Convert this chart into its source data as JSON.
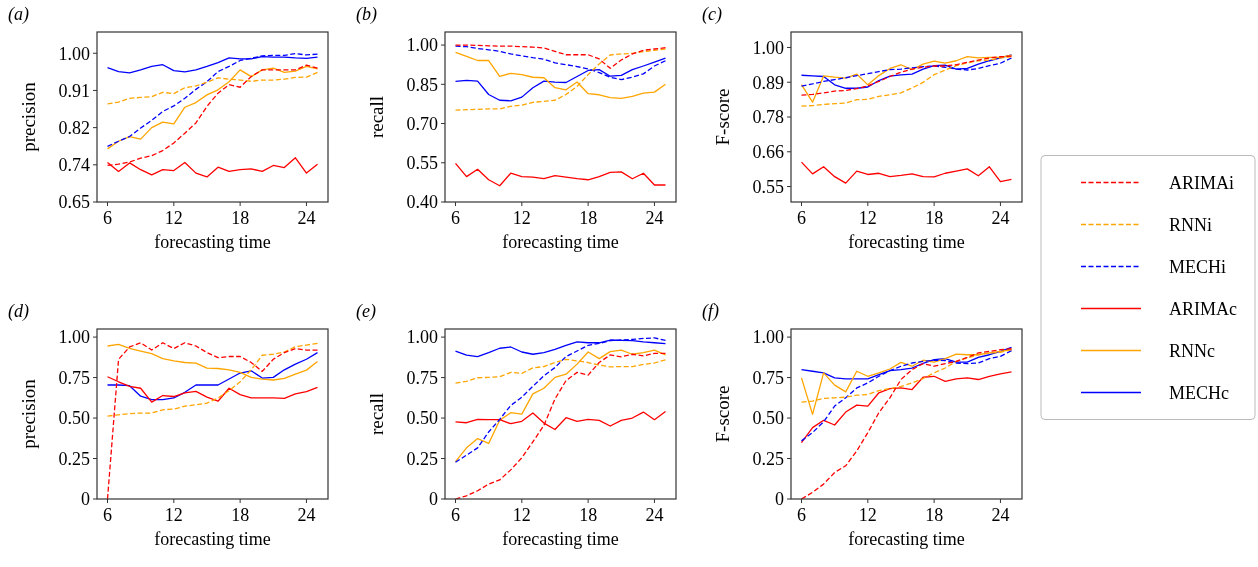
{
  "chart_data": [
    {
      "type": "line",
      "title": "(a)",
      "xlabel": "forecasting time",
      "ylabel": "precision",
      "legend": "right",
      "x": [
        6,
        7,
        8,
        9,
        10,
        11,
        12,
        13,
        14,
        15,
        16,
        17,
        18,
        19,
        20,
        21,
        22,
        23,
        24,
        25
      ],
      "xlim": [
        5.05,
        25.95
      ],
      "xticks": [
        6,
        12,
        18,
        24
      ],
      "ylim": [
        0.65,
        1.05
      ],
      "yticks": [
        0.65,
        {
          "value": 0.7375,
          "label": "0.74"
        },
        {
          "value": 0.825,
          "label": "0.82"
        },
        {
          "value": 0.9125,
          "label": "0.91"
        },
        {
          "value": 1.0,
          "label": "1.00"
        }
      ],
      "series": [
        {
          "name": "ARIMAi",
          "color": "#ff0000",
          "line_style": "dashed",
          "values": [
            0.736,
            0.739,
            0.744,
            0.753,
            0.759,
            0.771,
            0.789,
            0.812,
            0.836,
            0.875,
            0.906,
            0.926,
            0.92,
            0.945,
            0.961,
            0.961,
            0.961,
            0.961,
            0.972,
            0.965
          ]
        },
        {
          "name": "RNNi",
          "color": "#ffa500",
          "line_style": "dashed",
          "values": [
            0.881,
            0.885,
            0.894,
            0.896,
            0.898,
            0.908,
            0.905,
            0.919,
            0.923,
            0.932,
            0.942,
            0.939,
            0.937,
            0.934,
            0.937,
            0.937,
            0.939,
            0.943,
            0.944,
            0.955
          ]
        },
        {
          "name": "MECHi",
          "color": "#0000ff",
          "line_style": "dashed",
          "values": [
            0.781,
            0.793,
            0.804,
            0.824,
            0.842,
            0.863,
            0.876,
            0.894,
            0.915,
            0.933,
            0.957,
            0.969,
            0.983,
            0.988,
            0.994,
            0.995,
            0.995,
            0.999,
            0.996,
            0.998
          ]
        },
        {
          "name": "ARIMAc",
          "color": "#ff0000",
          "line_style": "solid",
          "values": [
            0.743,
            0.722,
            0.742,
            0.726,
            0.714,
            0.726,
            0.724,
            0.743,
            0.718,
            0.709,
            0.732,
            0.722,
            0.726,
            0.728,
            0.722,
            0.736,
            0.731,
            0.754,
            0.718,
            0.739
          ]
        },
        {
          "name": "RNNc",
          "color": "#ffa500",
          "line_style": "solid",
          "values": [
            0.775,
            0.793,
            0.804,
            0.798,
            0.825,
            0.838,
            0.834,
            0.873,
            0.884,
            0.902,
            0.914,
            0.933,
            0.961,
            0.945,
            0.961,
            0.965,
            0.955,
            0.958,
            0.969,
            0.963
          ]
        },
        {
          "name": "MECHc",
          "color": "#0000ff",
          "line_style": "solid",
          "values": [
            0.966,
            0.957,
            0.954,
            0.961,
            0.969,
            0.973,
            0.959,
            0.956,
            0.961,
            0.969,
            0.978,
            0.989,
            0.987,
            0.987,
            0.992,
            0.991,
            0.991,
            0.989,
            0.988,
            0.991
          ]
        }
      ]
    },
    {
      "type": "line",
      "title": "(b)",
      "xlabel": "forecasting time",
      "ylabel": "recall",
      "x": [
        6,
        7,
        8,
        9,
        10,
        11,
        12,
        13,
        14,
        15,
        16,
        17,
        18,
        19,
        20,
        21,
        22,
        23,
        24,
        25
      ],
      "xlim": [
        5.05,
        25.95
      ],
      "xticks": [
        6,
        12,
        18,
        24
      ],
      "ylim": [
        0.4,
        1.05
      ],
      "yticks": [
        {
          "value": 0.4,
          "label": "0.40"
        },
        0.55,
        {
          "value": 0.7,
          "label": "0.70"
        },
        0.85,
        {
          "value": 1.0,
          "label": "1.00"
        }
      ],
      "series": [
        {
          "color": "#ff0000",
          "line_style": "dashed",
          "values": [
            1.0,
            1.0,
            0.999,
            0.997,
            0.996,
            0.996,
            0.994,
            0.992,
            0.989,
            0.976,
            0.963,
            0.963,
            0.963,
            0.947,
            0.911,
            0.943,
            0.966,
            0.98,
            0.985,
            0.99
          ]
        },
        {
          "color": "#ffa500",
          "line_style": "dashed",
          "values": [
            0.751,
            0.753,
            0.754,
            0.756,
            0.756,
            0.766,
            0.77,
            0.781,
            0.785,
            0.789,
            0.811,
            0.842,
            0.887,
            0.928,
            0.962,
            0.966,
            0.968,
            0.975,
            0.98,
            0.985
          ]
        },
        {
          "color": "#0000ff",
          "line_style": "dashed",
          "values": [
            0.996,
            0.994,
            0.987,
            0.982,
            0.976,
            0.966,
            0.959,
            0.952,
            0.946,
            0.932,
            0.925,
            0.918,
            0.909,
            0.895,
            0.877,
            0.868,
            0.877,
            0.89,
            0.92,
            0.94
          ]
        },
        {
          "color": "#ff0000",
          "line_style": "solid",
          "values": [
            0.548,
            0.497,
            0.525,
            0.485,
            0.462,
            0.51,
            0.497,
            0.495,
            0.489,
            0.501,
            0.495,
            0.489,
            0.485,
            0.497,
            0.513,
            0.515,
            0.489,
            0.51,
            0.465,
            0.465
          ]
        },
        {
          "color": "#ffa500",
          "line_style": "solid",
          "values": [
            0.972,
            0.957,
            0.941,
            0.941,
            0.88,
            0.892,
            0.887,
            0.877,
            0.875,
            0.837,
            0.829,
            0.859,
            0.814,
            0.81,
            0.799,
            0.796,
            0.804,
            0.816,
            0.82,
            0.85
          ]
        },
        {
          "color": "#0000ff",
          "line_style": "solid",
          "values": [
            0.861,
            0.865,
            0.862,
            0.811,
            0.789,
            0.787,
            0.801,
            0.837,
            0.862,
            0.858,
            0.857,
            0.88,
            0.903,
            0.906,
            0.881,
            0.884,
            0.906,
            0.92,
            0.935,
            0.95
          ]
        }
      ]
    },
    {
      "type": "line",
      "title": "(c)",
      "xlabel": "forecasting time",
      "ylabel": "F-score",
      "x": [
        6,
        7,
        8,
        9,
        10,
        11,
        12,
        13,
        14,
        15,
        16,
        17,
        18,
        19,
        20,
        21,
        22,
        23,
        24,
        25
      ],
      "xlim": [
        5.05,
        25.95
      ],
      "xticks": [
        6,
        12,
        18,
        24
      ],
      "ylim": [
        0.5,
        1.05
      ],
      "yticks": [
        0.55,
        {
          "value": 0.6625,
          "label": "0.66"
        },
        {
          "value": 0.775,
          "label": "0.78"
        },
        {
          "value": 0.8875,
          "label": "0.89"
        },
        {
          "value": 1.0,
          "label": "1.00"
        }
      ],
      "series": [
        {
          "color": "#ff0000",
          "line_style": "dashed",
          "values": [
            0.846,
            0.848,
            0.853,
            0.859,
            0.861,
            0.867,
            0.876,
            0.89,
            0.906,
            0.92,
            0.93,
            0.936,
            0.94,
            0.94,
            0.944,
            0.952,
            0.959,
            0.966,
            0.97,
            0.972
          ]
        },
        {
          "color": "#ffa500",
          "line_style": "dashed",
          "values": [
            0.81,
            0.812,
            0.816,
            0.818,
            0.82,
            0.831,
            0.832,
            0.842,
            0.847,
            0.853,
            0.869,
            0.887,
            0.912,
            0.927,
            0.941,
            0.95,
            0.957,
            0.959,
            0.966,
            0.97
          ]
        },
        {
          "color": "#0000ff",
          "line_style": "dashed",
          "values": [
            0.875,
            0.882,
            0.89,
            0.896,
            0.902,
            0.909,
            0.915,
            0.922,
            0.928,
            0.93,
            0.934,
            0.938,
            0.94,
            0.936,
            0.93,
            0.927,
            0.932,
            0.941,
            0.949,
            0.966
          ]
        },
        {
          "color": "#ff0000",
          "line_style": "solid",
          "values": [
            0.629,
            0.591,
            0.614,
            0.582,
            0.561,
            0.6,
            0.589,
            0.593,
            0.582,
            0.586,
            0.591,
            0.582,
            0.581,
            0.593,
            0.6,
            0.607,
            0.585,
            0.614,
            0.566,
            0.573
          ]
        },
        {
          "color": "#ffa500",
          "line_style": "solid",
          "values": [
            0.88,
            0.823,
            0.908,
            0.904,
            0.901,
            0.914,
            0.879,
            0.909,
            0.932,
            0.944,
            0.928,
            0.946,
            0.956,
            0.949,
            0.957,
            0.97,
            0.966,
            0.968,
            0.968,
            0.975
          ]
        },
        {
          "color": "#0000ff",
          "line_style": "solid",
          "values": [
            0.91,
            0.908,
            0.906,
            0.879,
            0.868,
            0.868,
            0.872,
            0.893,
            0.907,
            0.911,
            0.914,
            0.93,
            0.941,
            0.943,
            0.93,
            0.932,
            0.946,
            0.957,
            0.966,
            0.976
          ]
        }
      ]
    },
    {
      "type": "line",
      "title": "(d)",
      "xlabel": "forecasting time",
      "ylabel": "precision",
      "x": [
        6,
        7,
        8,
        9,
        10,
        11,
        12,
        13,
        14,
        15,
        16,
        17,
        18,
        19,
        20,
        21,
        22,
        23,
        24,
        25
      ],
      "xlim": [
        5.05,
        25.95
      ],
      "xticks": [
        6,
        12,
        18,
        24
      ],
      "ylim": [
        0,
        1.05
      ],
      "yticks": [
        0,
        0.25,
        {
          "value": 0.5,
          "label": "0.50"
        },
        0.75,
        {
          "value": 1.0,
          "label": "1.00"
        }
      ],
      "series": [
        {
          "color": "#ff0000",
          "line_style": "dashed",
          "values": [
            0.0,
            0.863,
            0.939,
            0.965,
            0.92,
            0.965,
            0.929,
            0.965,
            0.945,
            0.904,
            0.873,
            0.88,
            0.88,
            0.843,
            0.788,
            0.863,
            0.904,
            0.929,
            0.92,
            0.92
          ]
        },
        {
          "color": "#ffa500",
          "line_style": "dashed",
          "values": [
            0.512,
            0.52,
            0.527,
            0.531,
            0.531,
            0.551,
            0.555,
            0.573,
            0.582,
            0.592,
            0.624,
            0.669,
            0.724,
            0.798,
            0.888,
            0.894,
            0.908,
            0.941,
            0.951,
            0.961
          ]
        },
        {
          "color": "#ff0000",
          "line_style": "solid",
          "values": [
            0.755,
            0.724,
            0.696,
            0.684,
            0.598,
            0.639,
            0.633,
            0.655,
            0.665,
            0.629,
            0.604,
            0.684,
            0.645,
            0.624,
            0.624,
            0.624,
            0.622,
            0.649,
            0.663,
            0.69
          ]
        },
        {
          "color": "#ffa500",
          "line_style": "solid",
          "values": [
            0.945,
            0.955,
            0.931,
            0.914,
            0.898,
            0.867,
            0.853,
            0.843,
            0.839,
            0.808,
            0.806,
            0.798,
            0.782,
            0.751,
            0.741,
            0.735,
            0.745,
            0.771,
            0.796,
            0.849
          ]
        },
        {
          "color": "#0000ff",
          "line_style": "solid",
          "values": [
            0.704,
            0.704,
            0.7,
            0.635,
            0.614,
            0.614,
            0.624,
            0.659,
            0.704,
            0.704,
            0.704,
            0.741,
            0.778,
            0.792,
            0.747,
            0.751,
            0.798,
            0.833,
            0.863,
            0.904
          ]
        }
      ]
    },
    {
      "type": "line",
      "title": "(e)",
      "xlabel": "forecasting time",
      "ylabel": "recall",
      "x": [
        6,
        7,
        8,
        9,
        10,
        11,
        12,
        13,
        14,
        15,
        16,
        17,
        18,
        19,
        20,
        21,
        22,
        23,
        24,
        25
      ],
      "xlim": [
        5.05,
        25.95
      ],
      "xticks": [
        6,
        12,
        18,
        24
      ],
      "ylim": [
        0,
        1.05
      ],
      "yticks": [
        0,
        0.25,
        {
          "value": 0.5,
          "label": "0.50"
        },
        0.75,
        {
          "value": 1.0,
          "label": "1.00"
        }
      ],
      "series": [
        {
          "color": "#ff0000",
          "line_style": "dashed",
          "values": [
            0.0,
            0.02,
            0.051,
            0.092,
            0.118,
            0.18,
            0.255,
            0.353,
            0.455,
            0.618,
            0.731,
            0.782,
            0.765,
            0.843,
            0.89,
            0.878,
            0.894,
            0.884,
            0.9,
            0.9
          ]
        },
        {
          "color": "#ffa500",
          "line_style": "dashed",
          "values": [
            0.716,
            0.727,
            0.749,
            0.751,
            0.755,
            0.782,
            0.776,
            0.81,
            0.818,
            0.843,
            0.863,
            0.853,
            0.843,
            0.827,
            0.816,
            0.818,
            0.818,
            0.831,
            0.84,
            0.86
          ]
        },
        {
          "color": "#0000ff",
          "line_style": "dashed",
          "values": [
            0.227,
            0.271,
            0.316,
            0.414,
            0.492,
            0.578,
            0.629,
            0.696,
            0.761,
            0.812,
            0.88,
            0.914,
            0.949,
            0.961,
            0.978,
            0.982,
            0.986,
            0.992,
            0.995,
            0.98
          ]
        },
        {
          "color": "#ff0000",
          "line_style": "solid",
          "values": [
            0.476,
            0.471,
            0.492,
            0.49,
            0.49,
            0.465,
            0.48,
            0.531,
            0.469,
            0.429,
            0.502,
            0.48,
            0.492,
            0.486,
            0.451,
            0.486,
            0.5,
            0.537,
            0.49,
            0.54
          ]
        },
        {
          "color": "#ffa500",
          "line_style": "solid",
          "values": [
            0.231,
            0.316,
            0.373,
            0.343,
            0.486,
            0.533,
            0.524,
            0.649,
            0.684,
            0.751,
            0.771,
            0.833,
            0.908,
            0.867,
            0.91,
            0.92,
            0.894,
            0.904,
            0.92,
            0.89
          ]
        },
        {
          "color": "#0000ff",
          "line_style": "solid",
          "values": [
            0.914,
            0.888,
            0.88,
            0.904,
            0.931,
            0.939,
            0.908,
            0.894,
            0.904,
            0.924,
            0.949,
            0.971,
            0.965,
            0.965,
            0.982,
            0.98,
            0.978,
            0.97,
            0.965,
            0.96
          ]
        }
      ]
    },
    {
      "type": "line",
      "title": "(f)",
      "xlabel": "forecasting time",
      "ylabel": "F-score",
      "x": [
        6,
        7,
        8,
        9,
        10,
        11,
        12,
        13,
        14,
        15,
        16,
        17,
        18,
        19,
        20,
        21,
        22,
        23,
        24,
        25
      ],
      "xlim": [
        5.05,
        25.95
      ],
      "xticks": [
        6,
        12,
        18,
        24
      ],
      "ylim": [
        0,
        1.05
      ],
      "yticks": [
        0,
        0.25,
        {
          "value": 0.5,
          "label": "0.50"
        },
        0.75,
        {
          "value": 1.0,
          "label": "1.00"
        }
      ],
      "series": [
        {
          "color": "#ff0000",
          "line_style": "dashed",
          "values": [
            0.0,
            0.041,
            0.092,
            0.164,
            0.205,
            0.297,
            0.41,
            0.533,
            0.625,
            0.738,
            0.799,
            0.836,
            0.82,
            0.836,
            0.85,
            0.875,
            0.902,
            0.912,
            0.922,
            0.928
          ]
        },
        {
          "color": "#ffa500",
          "line_style": "dashed",
          "values": [
            0.598,
            0.605,
            0.621,
            0.625,
            0.629,
            0.641,
            0.645,
            0.67,
            0.682,
            0.695,
            0.717,
            0.744,
            0.779,
            0.809,
            0.85,
            0.871,
            0.891,
            0.902,
            0.906,
            0.922
          ]
        },
        {
          "color": "#0000ff",
          "line_style": "dashed",
          "values": [
            0.359,
            0.41,
            0.477,
            0.574,
            0.625,
            0.686,
            0.717,
            0.758,
            0.793,
            0.82,
            0.84,
            0.85,
            0.857,
            0.855,
            0.84,
            0.836,
            0.84,
            0.867,
            0.881,
            0.916
          ]
        },
        {
          "color": "#ff0000",
          "line_style": "solid",
          "values": [
            0.348,
            0.441,
            0.486,
            0.457,
            0.537,
            0.58,
            0.574,
            0.656,
            0.682,
            0.686,
            0.676,
            0.752,
            0.758,
            0.727,
            0.742,
            0.748,
            0.738,
            0.758,
            0.773,
            0.785
          ]
        },
        {
          "color": "#ffa500",
          "line_style": "solid",
          "values": [
            0.748,
            0.523,
            0.779,
            0.703,
            0.662,
            0.789,
            0.758,
            0.779,
            0.803,
            0.844,
            0.82,
            0.857,
            0.846,
            0.867,
            0.895,
            0.891,
            0.891,
            0.902,
            0.912,
            0.922
          ]
        },
        {
          "color": "#0000ff",
          "line_style": "solid",
          "values": [
            0.799,
            0.789,
            0.779,
            0.748,
            0.742,
            0.742,
            0.742,
            0.768,
            0.793,
            0.799,
            0.809,
            0.838,
            0.861,
            0.867,
            0.846,
            0.846,
            0.875,
            0.891,
            0.912,
            0.936
          ]
        }
      ]
    }
  ]
}
